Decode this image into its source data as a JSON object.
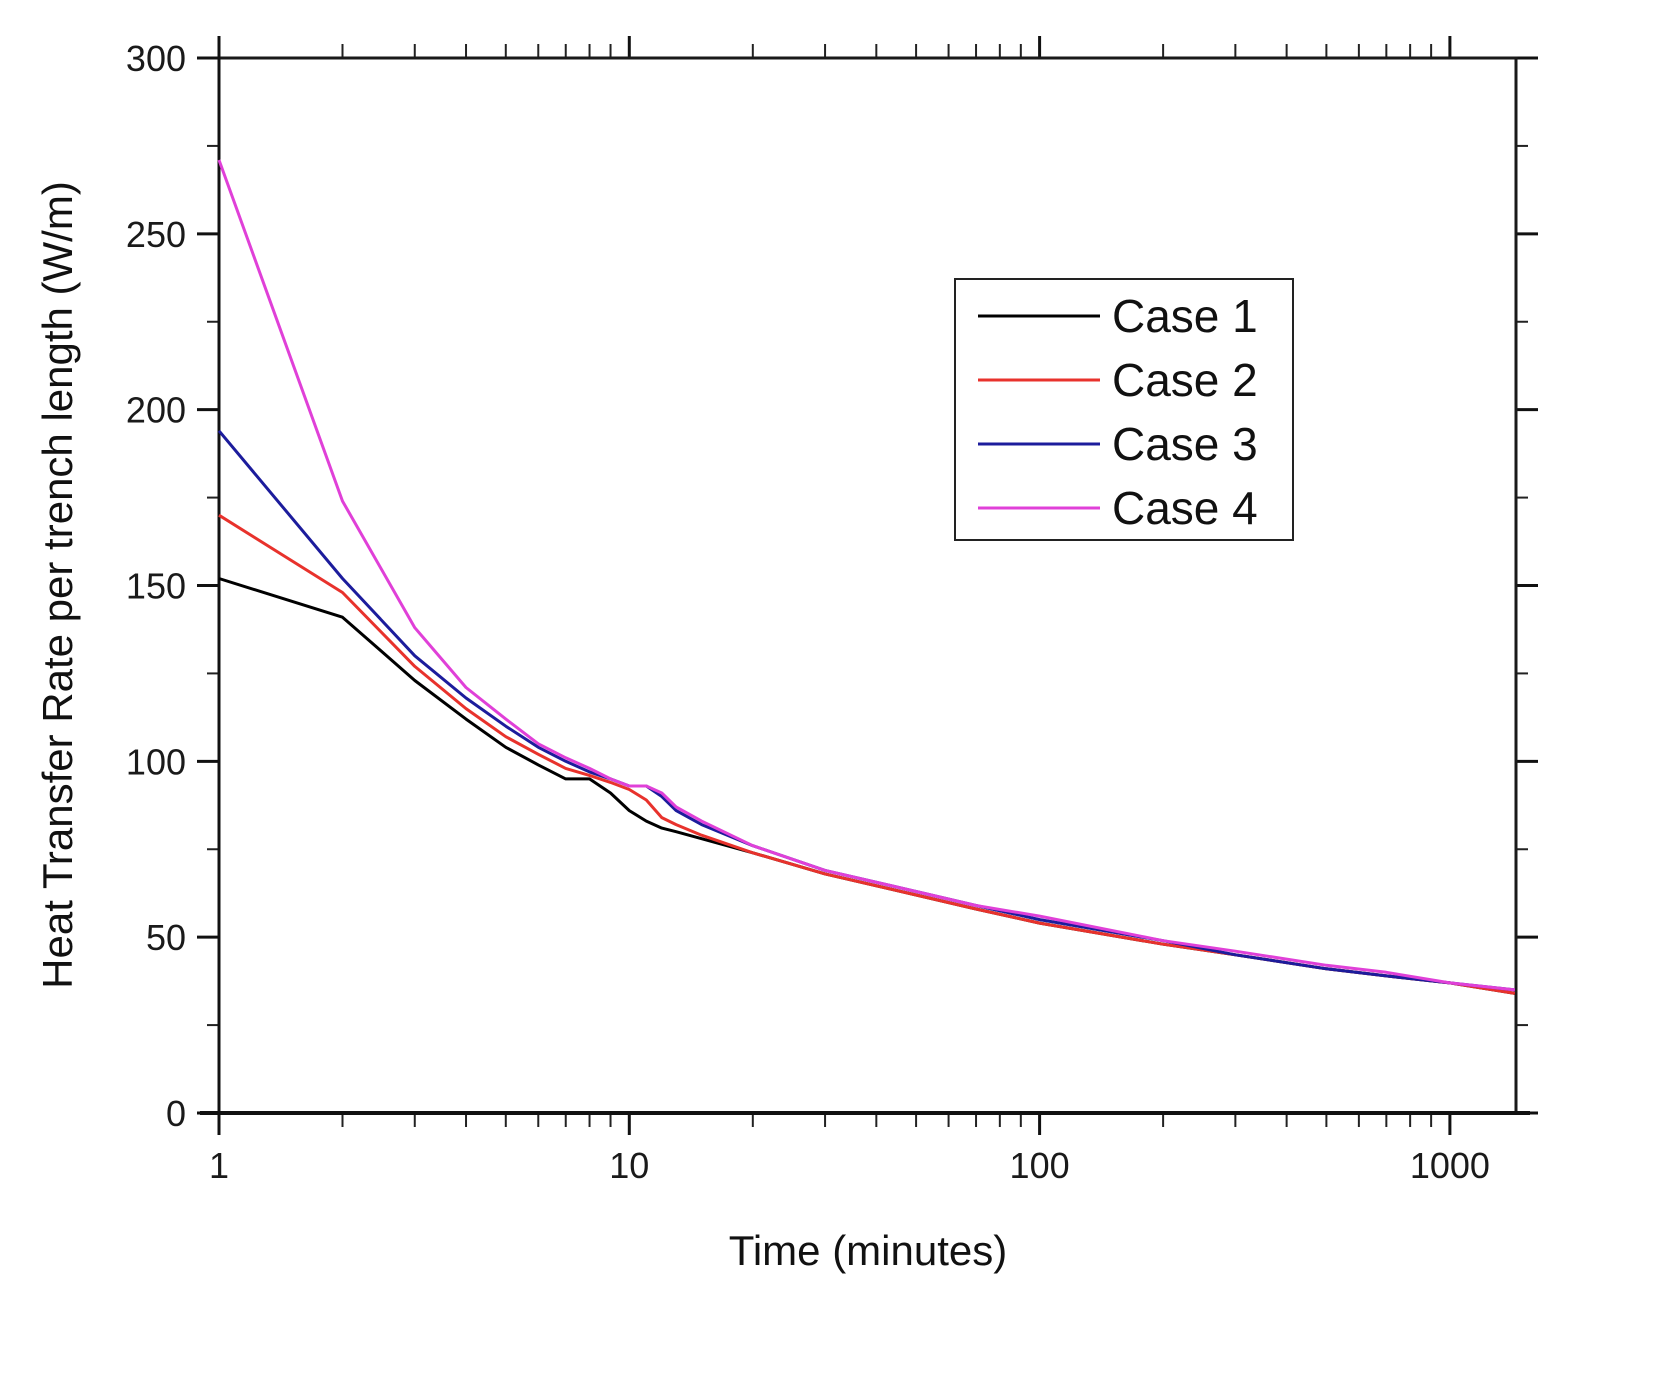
{
  "chart_data": {
    "type": "line",
    "title": "",
    "xlabel": "Time (minutes)",
    "ylabel": "Heat Transfer Rate per trench length (W/m)",
    "xscale": "log",
    "xlim": [
      1,
      1440
    ],
    "ylim": [
      0,
      300
    ],
    "x_ticks": [
      1,
      10,
      100,
      1000
    ],
    "x_tick_labels": [
      "1",
      "10",
      "100",
      "1000"
    ],
    "y_ticks": [
      0,
      50,
      100,
      150,
      200,
      250,
      300
    ],
    "y_tick_labels": [
      "0",
      "50",
      "100",
      "150",
      "200",
      "250",
      "300"
    ],
    "grid": false,
    "legend_position": "upper right (inset box)",
    "x": [
      1,
      2,
      3,
      4,
      5,
      6,
      7,
      8,
      9,
      10,
      11,
      12,
      13,
      15,
      20,
      30,
      50,
      70,
      100,
      200,
      300,
      500,
      700,
      1000,
      1440
    ],
    "series": [
      {
        "name": "Case 1",
        "color": "#000000",
        "values": [
          152,
          141,
          123,
          112,
          104,
          99,
          95,
          95,
          91,
          86,
          83,
          81,
          80,
          78,
          74,
          68,
          62,
          58,
          54,
          48,
          45,
          41,
          39,
          37,
          34
        ]
      },
      {
        "name": "Case 2",
        "color": "#e8322c",
        "values": [
          170,
          148,
          127,
          115,
          107,
          102,
          98,
          96,
          94,
          92,
          89,
          84,
          82,
          79,
          74,
          68,
          62,
          58,
          54,
          48,
          45,
          41,
          39,
          37,
          34
        ]
      },
      {
        "name": "Case 3",
        "color": "#1c1c9c",
        "values": [
          194,
          152,
          130,
          118,
          110,
          104,
          100,
          97,
          95,
          93,
          93,
          90,
          86,
          82,
          76,
          69,
          63,
          59,
          55,
          49,
          45,
          41,
          39,
          37,
          35
        ]
      },
      {
        "name": "Case 4",
        "color": "#e040d8",
        "values": [
          271,
          174,
          138,
          121,
          112,
          105,
          101,
          98,
          95,
          93,
          93,
          91,
          87,
          83,
          76,
          69,
          63,
          59,
          56,
          49,
          46,
          42,
          40,
          37,
          35
        ]
      }
    ]
  },
  "legend": {
    "items": [
      {
        "label": "Case 1",
        "color": "#000000"
      },
      {
        "label": "Case 2",
        "color": "#e8322c"
      },
      {
        "label": "Case 3",
        "color": "#1c1c9c"
      },
      {
        "label": "Case 4",
        "color": "#e040d8"
      }
    ]
  }
}
